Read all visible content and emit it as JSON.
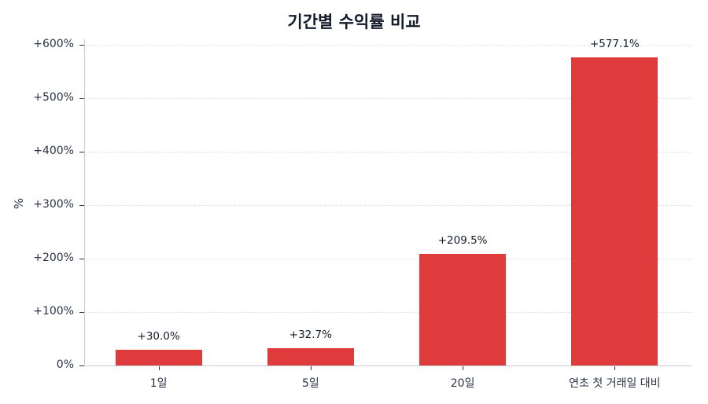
{
  "chart_data": {
    "type": "bar",
    "title": "기간별 수익률 비교",
    "xlabel": "",
    "ylabel": "%",
    "categories": [
      "1일",
      "5일",
      "20일",
      "연초 첫 거래일 대비"
    ],
    "values": [
      30.0,
      32.7,
      209.5,
      577.1
    ],
    "value_labels": [
      "+30.0%",
      "+32.7%",
      "+209.5%",
      "+577.1%"
    ],
    "ylim": [
      0,
      600
    ],
    "yticks": [
      0,
      100,
      200,
      300,
      400,
      500,
      600
    ],
    "ytick_labels": [
      "0%",
      "+100%",
      "+200%",
      "+300%",
      "+400%",
      "+500%",
      "+600%"
    ],
    "grid": true,
    "legend": null,
    "bar_color": "#e03b3c"
  }
}
